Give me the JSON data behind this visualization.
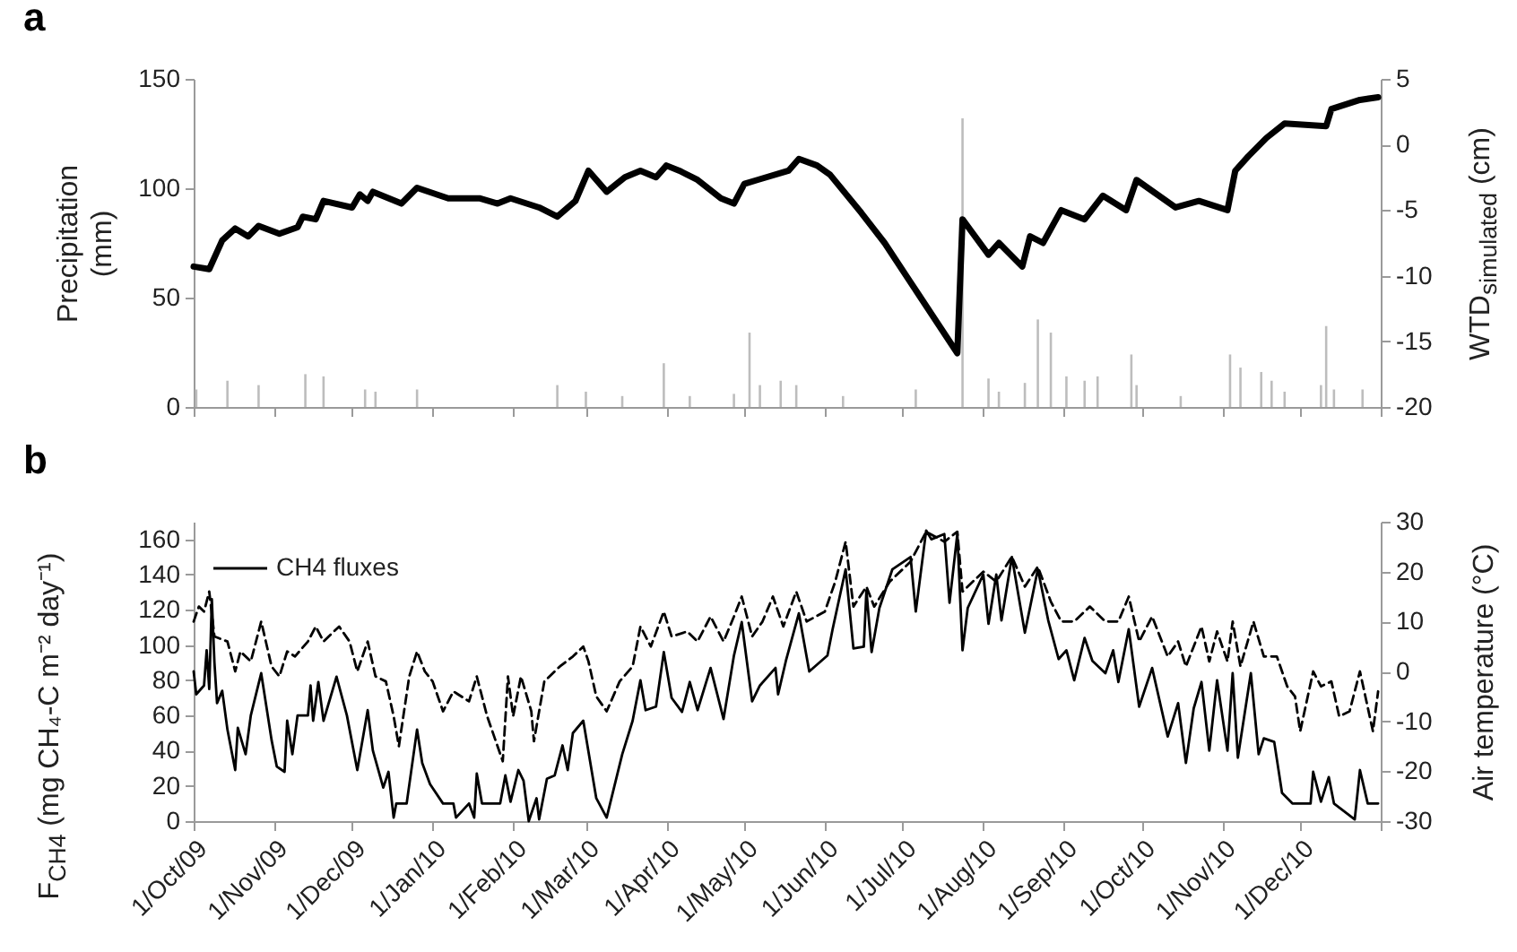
{
  "chart_data": [
    {
      "type": "line",
      "title": "a",
      "ylabel": "Precipitation\n(mm)",
      "y2label": "WTD$_{simulated}$ (cm)",
      "xlim": [
        "2009-10-01",
        "2011-01-01"
      ],
      "xticks": [
        {
          "value": "2009-10-01",
          "label": null
        },
        {
          "value": "2009-11-01",
          "label": null
        },
        {
          "value": "2009-12-01",
          "label": null
        },
        {
          "value": "2010-01-01",
          "label": null
        },
        {
          "value": "2010-02-01",
          "label": null
        },
        {
          "value": "2010-03-01",
          "label": null
        },
        {
          "value": "2010-04-01",
          "label": null
        },
        {
          "value": "2010-05-01",
          "label": null
        },
        {
          "value": "2010-06-01",
          "label": null
        },
        {
          "value": "2010-07-01",
          "label": null
        },
        {
          "value": "2010-08-01",
          "label": null
        },
        {
          "value": "2010-09-01",
          "label": null
        },
        {
          "value": "2010-10-01",
          "label": null
        },
        {
          "value": "2010-11-01",
          "label": null
        },
        {
          "value": "2010-12-01",
          "label": null
        },
        {
          "value": "2011-01-01",
          "label": null
        }
      ],
      "ylim": [
        0,
        150
      ],
      "yticks": [
        0,
        50,
        100,
        150
      ],
      "y2lim": [
        -20,
        5
      ],
      "y2ticks": [
        -20,
        -15,
        -10,
        -5,
        0,
        5
      ],
      "tick_labels": "y",
      "series": [
        {
          "type": "bar",
          "color": "#bdbdbd",
          "x": [
            "2009-10-02",
            "2009-10-14",
            "2009-10-26",
            "2009-11-13",
            "2009-11-20",
            "2009-12-06",
            "2009-12-10",
            "2009-12-26",
            "2010-02-18",
            "2010-03-01",
            "2010-03-15",
            "2010-03-31",
            "2010-04-10",
            "2010-04-27",
            "2010-05-03",
            "2010-05-07",
            "2010-05-15",
            "2010-05-21",
            "2010-06-08",
            "2010-07-06",
            "2010-07-24",
            "2010-08-03",
            "2010-08-07",
            "2010-08-17",
            "2010-08-22",
            "2010-08-27",
            "2010-09-02",
            "2010-09-09",
            "2010-09-14",
            "2010-09-27",
            "2010-09-29",
            "2010-10-16",
            "2010-11-04",
            "2010-11-08",
            "2010-11-16",
            "2010-11-20",
            "2010-11-25",
            "2010-12-09",
            "2010-12-11",
            "2010-12-14",
            "2010-12-25"
          ],
          "values": [
            8,
            12,
            10,
            15,
            14,
            8,
            7,
            8,
            10,
            7,
            5,
            20,
            5,
            6,
            34,
            10,
            12,
            10,
            5,
            8,
            132,
            13,
            7,
            11,
            40,
            34,
            14,
            12,
            14,
            24,
            10,
            5,
            24,
            18,
            16,
            12,
            7,
            10,
            37,
            8,
            8
          ]
        },
        {
          "axis": "y2",
          "color": "#000000",
          "x": [
            "2009-10-01",
            "2009-10-07",
            "2009-10-12",
            "2009-10-17",
            "2009-10-22",
            "2009-10-26",
            "2009-11-03",
            "2009-11-10",
            "2009-11-12",
            "2009-11-17",
            "2009-11-20",
            "2009-12-01",
            "2009-12-04",
            "2009-12-07",
            "2009-12-09",
            "2009-12-20",
            "2009-12-26",
            "2010-01-07",
            "2010-01-19",
            "2010-01-26",
            "2010-01-31",
            "2010-02-11",
            "2010-02-18",
            "2010-02-25",
            "2010-03-02",
            "2010-03-09",
            "2010-03-16",
            "2010-03-22",
            "2010-03-28",
            "2010-04-01",
            "2010-04-06",
            "2010-04-13",
            "2010-04-22",
            "2010-04-27",
            "2010-05-01",
            "2010-05-06",
            "2010-05-18",
            "2010-05-22",
            "2010-05-29",
            "2010-06-03",
            "2010-06-15",
            "2010-06-24",
            "2010-07-06",
            "2010-07-15",
            "2010-07-22",
            "2010-07-24",
            "2010-08-03",
            "2010-08-07",
            "2010-08-16",
            "2010-08-19",
            "2010-08-24",
            "2010-08-31",
            "2010-09-09",
            "2010-09-16",
            "2010-09-25",
            "2010-09-29",
            "2010-10-14",
            "2010-10-23",
            "2010-11-03",
            "2010-11-06",
            "2010-11-11",
            "2010-11-18",
            "2010-11-25",
            "2010-12-11",
            "2010-12-13",
            "2010-12-24",
            "2010-12-31"
          ],
          "values": [
            -9.3,
            -9.5,
            -7.3,
            -6.4,
            -7.0,
            -6.2,
            -6.8,
            -6.3,
            -5.5,
            -5.7,
            -4.3,
            -4.8,
            -3.8,
            -4.3,
            -3.6,
            -4.5,
            -3.3,
            -4.1,
            -4.1,
            -4.5,
            -4.1,
            -4.8,
            -5.5,
            -4.3,
            -2.0,
            -3.6,
            -2.5,
            -2.0,
            -2.5,
            -1.6,
            -2.0,
            -2.7,
            -4.1,
            -4.5,
            -3.0,
            -2.7,
            -2.0,
            -1.1,
            -1.6,
            -2.3,
            -5.2,
            -7.5,
            -11.1,
            -13.8,
            -15.9,
            -5.7,
            -8.4,
            -7.5,
            -9.3,
            -7.0,
            -7.5,
            -5.0,
            -5.7,
            -3.9,
            -5.0,
            -2.7,
            -4.8,
            -4.3,
            -5.0,
            -2.0,
            -0.9,
            0.5,
            1.6,
            1.4,
            2.7,
            3.4,
            3.6
          ]
        }
      ]
    },
    {
      "type": "line",
      "title": "b",
      "ylabel": "F$_{CH4}$ (mg CH₄-C m⁻² day⁻¹)",
      "y2label": "Air temperature (°C)",
      "xlim": [
        "2009-10-01",
        "2011-01-01"
      ],
      "xticks": [
        {
          "value": "2009-10-01",
          "label": "1/Oct/09"
        },
        {
          "value": "2009-11-01",
          "label": "1/Nov/09"
        },
        {
          "value": "2009-12-01",
          "label": "1/Dec/09"
        },
        {
          "value": "2010-01-01",
          "label": "1/Jan/10"
        },
        {
          "value": "2010-02-01",
          "label": "1/Feb/10"
        },
        {
          "value": "2010-03-01",
          "label": "1/Mar/10"
        },
        {
          "value": "2010-04-01",
          "label": "1/Apr/10"
        },
        {
          "value": "2010-05-01",
          "label": "1/May/10"
        },
        {
          "value": "2010-06-01",
          "label": "1/Jun/10"
        },
        {
          "value": "2010-07-01",
          "label": "1/Jul/10"
        },
        {
          "value": "2010-08-01",
          "label": "1/Aug/10"
        },
        {
          "value": "2010-09-01",
          "label": "1/Sep/10"
        },
        {
          "value": "2010-10-01",
          "label": "1/Oct/10"
        },
        {
          "value": "2010-11-01",
          "label": "1/Nov/10"
        },
        {
          "value": "2010-12-01",
          "label": "1/Dec/10"
        },
        {
          "value": "2011-01-01",
          "label": null
        }
      ],
      "ylim": [
        0,
        170
      ],
      "yticks": [
        0,
        20,
        40,
        60,
        80,
        100,
        120,
        140,
        160
      ],
      "y2lim": [
        -30,
        30
      ],
      "y2ticks": [
        -30,
        -20,
        -10,
        0,
        10,
        20,
        30
      ],
      "legend": "top left",
      "series": [
        {
          "name": "CH4 fluxes",
          "color": "#000000",
          "x": [
            "2009-10-01",
            "2009-10-02",
            "2009-10-05",
            "2009-10-06",
            "2009-10-07",
            "2009-10-08",
            "2009-10-09",
            "2009-10-10",
            "2009-10-12",
            "2009-10-14",
            "2009-10-17",
            "2009-10-18",
            "2009-10-21",
            "2009-10-23",
            "2009-10-27",
            "2009-10-31",
            "2009-11-02",
            "2009-11-05",
            "2009-11-06",
            "2009-11-08",
            "2009-11-10",
            "2009-11-14",
            "2009-11-15",
            "2009-11-16",
            "2009-11-18",
            "2009-11-20",
            "2009-11-25",
            "2009-11-29",
            "2009-12-03",
            "2009-12-07",
            "2009-12-09",
            "2009-12-13",
            "2009-12-15",
            "2009-12-17",
            "2009-12-18",
            "2009-12-22",
            "2009-12-26",
            "2009-12-28",
            "2009-12-31",
            "2010-01-05",
            "2010-01-09",
            "2010-01-10",
            "2010-01-15",
            "2010-01-17",
            "2010-01-18",
            "2010-01-20",
            "2010-01-27",
            "2010-01-29",
            "2010-01-31",
            "2010-02-03",
            "2010-02-05",
            "2010-02-07",
            "2010-02-10",
            "2010-02-11",
            "2010-02-14",
            "2010-02-17",
            "2010-02-20",
            "2010-02-22",
            "2010-02-24",
            "2010-02-28",
            "2010-03-05",
            "2010-03-09",
            "2010-03-13",
            "2010-03-15",
            "2010-03-19",
            "2010-03-22",
            "2010-03-24",
            "2010-03-28",
            "2010-03-31",
            "2010-04-03",
            "2010-04-07",
            "2010-04-10",
            "2010-04-13",
            "2010-04-18",
            "2010-04-23",
            "2010-04-27",
            "2010-04-30",
            "2010-05-04",
            "2010-05-07",
            "2010-05-13",
            "2010-05-14",
            "2010-05-17",
            "2010-05-22",
            "2010-05-26",
            "2010-06-02",
            "2010-06-04",
            "2010-06-09",
            "2010-06-12",
            "2010-06-16",
            "2010-06-17",
            "2010-06-19",
            "2010-06-22",
            "2010-06-27",
            "2010-07-04",
            "2010-07-06",
            "2010-07-10",
            "2010-07-12",
            "2010-07-17",
            "2010-07-19",
            "2010-07-22",
            "2010-07-24",
            "2010-07-26",
            "2010-08-01",
            "2010-08-03",
            "2010-08-06",
            "2010-08-08",
            "2010-08-12",
            "2010-08-17",
            "2010-08-22",
            "2010-08-26",
            "2010-08-30",
            "2010-09-02",
            "2010-09-05",
            "2010-09-09",
            "2010-09-12",
            "2010-09-17",
            "2010-09-20",
            "2010-09-22",
            "2010-09-26",
            "2010-09-30",
            "2010-10-05",
            "2010-10-11",
            "2010-10-15",
            "2010-10-18",
            "2010-10-21",
            "2010-10-24",
            "2010-10-27",
            "2010-10-30",
            "2010-11-03",
            "2010-11-05",
            "2010-11-07",
            "2010-11-12",
            "2010-11-15",
            "2010-11-17",
            "2010-11-21",
            "2010-11-24",
            "2010-11-28",
            "2010-12-05",
            "2010-12-06",
            "2010-12-09",
            "2010-12-12",
            "2010-12-14",
            "2010-12-22",
            "2010-12-24",
            "2010-12-27",
            "2010-12-31"
          ],
          "values": [
            85,
            72,
            77,
            97,
            75,
            126,
            90,
            67,
            74,
            52,
            29,
            53,
            38,
            60,
            84,
            46,
            31,
            28,
            57,
            38,
            60,
            60,
            77,
            57,
            79,
            57,
            82,
            60,
            29,
            63,
            40,
            19,
            28,
            2,
            10,
            10,
            52,
            33,
            21,
            10,
            10,
            2,
            10,
            2,
            27,
            10,
            10,
            26,
            11,
            29,
            23,
            0,
            13,
            1,
            24,
            26,
            43,
            29,
            50,
            57,
            13,
            2,
            26,
            38,
            57,
            80,
            63,
            65,
            96,
            70,
            62,
            79,
            63,
            87,
            58,
            94,
            113,
            68,
            77,
            87,
            72,
            91,
            118,
            85,
            94,
            109,
            143,
            98,
            99,
            131,
            96,
            121,
            143,
            150,
            119,
            165,
            160,
            163,
            124,
            163,
            97,
            121,
            140,
            112,
            140,
            114,
            150,
            107,
            143,
            114,
            92,
            97,
            80,
            104,
            91,
            84,
            97,
            79,
            109,
            65,
            87,
            48,
            67,
            33,
            64,
            79,
            40,
            80,
            40,
            84,
            36,
            84,
            38,
            47,
            45,
            16,
            10,
            10,
            28,
            11,
            25,
            10,
            1,
            29,
            10,
            10
          ]
        },
        {
          "axis": "y2",
          "line_style": "dashed",
          "color": "#000000",
          "x": [
            "2009-10-01",
            "2009-10-03",
            "2009-10-05",
            "2009-10-07",
            "2009-10-09",
            "2009-10-14",
            "2009-10-17",
            "2009-10-19",
            "2009-10-23",
            "2009-10-27",
            "2009-10-31",
            "2009-11-03",
            "2009-11-06",
            "2009-11-09",
            "2009-11-14",
            "2009-11-17",
            "2009-11-20",
            "2009-11-26",
            "2009-11-30",
            "2009-12-03",
            "2009-12-07",
            "2009-12-10",
            "2009-12-14",
            "2009-12-17",
            "2009-12-19",
            "2009-12-23",
            "2009-12-26",
            "2009-12-29",
            "2010-01-01",
            "2010-01-05",
            "2010-01-09",
            "2010-01-15",
            "2010-01-18",
            "2010-01-22",
            "2010-01-26",
            "2010-01-28",
            "2010-01-30",
            "2010-02-01",
            "2010-02-04",
            "2010-02-08",
            "2010-02-09",
            "2010-02-13",
            "2010-02-19",
            "2010-02-24",
            "2010-02-28",
            "2010-03-02",
            "2010-03-05",
            "2010-03-09",
            "2010-03-14",
            "2010-03-19",
            "2010-03-22",
            "2010-03-26",
            "2010-03-31",
            "2010-04-03",
            "2010-04-09",
            "2010-04-13",
            "2010-04-18",
            "2010-04-23",
            "2010-04-27",
            "2010-04-30",
            "2010-05-04",
            "2010-05-08",
            "2010-05-12",
            "2010-05-16",
            "2010-05-21",
            "2010-05-25",
            "2010-06-01",
            "2010-06-05",
            "2010-06-09",
            "2010-06-12",
            "2010-06-17",
            "2010-06-20",
            "2010-06-26",
            "2010-07-04",
            "2010-07-10",
            "2010-07-17",
            "2010-07-22",
            "2010-07-24",
            "2010-08-01",
            "2010-08-06",
            "2010-08-12",
            "2010-08-17",
            "2010-08-22",
            "2010-08-27",
            "2010-08-31",
            "2010-09-05",
            "2010-09-11",
            "2010-09-17",
            "2010-09-22",
            "2010-09-26",
            "2010-09-30",
            "2010-10-05",
            "2010-10-11",
            "2010-10-15",
            "2010-10-18",
            "2010-10-24",
            "2010-10-27",
            "2010-10-30",
            "2010-11-03",
            "2010-11-05",
            "2010-11-08",
            "2010-11-13",
            "2010-11-17",
            "2010-11-22",
            "2010-11-26",
            "2010-11-29",
            "2010-12-01",
            "2010-12-06",
            "2010-12-09",
            "2010-12-13",
            "2010-12-16",
            "2010-12-20",
            "2010-12-24",
            "2010-12-29",
            "2010-12-31"
          ],
          "values": [
            10,
            13,
            12,
            16,
            7,
            6,
            0,
            4,
            2,
            10,
            1,
            -1,
            4,
            3,
            6,
            9,
            6,
            9,
            6,
            0,
            6,
            -1,
            -2,
            -9,
            -15,
            -1,
            4,
            0,
            -2,
            -8,
            -4,
            -6,
            -1,
            -9,
            -15,
            -18,
            -1,
            -9,
            -1,
            -8,
            -14,
            -2,
            1,
            3,
            5,
            2,
            -5,
            -8,
            -2,
            1,
            9,
            5,
            12,
            7,
            8,
            6,
            11,
            6,
            11,
            15,
            7,
            10,
            15,
            9,
            16,
            10,
            12,
            18,
            26,
            13,
            17,
            13,
            18,
            22,
            28,
            26,
            28,
            16,
            20,
            18,
            23,
            17,
            21,
            14,
            10,
            10,
            13,
            10,
            10,
            15,
            6,
            11,
            3,
            6,
            1,
            9,
            2,
            8,
            2,
            10,
            1,
            10,
            3,
            3,
            -3,
            -5,
            -12,
            0,
            -3,
            -2,
            -9,
            -8,
            0,
            -12,
            -4
          ]
        }
      ]
    }
  ]
}
